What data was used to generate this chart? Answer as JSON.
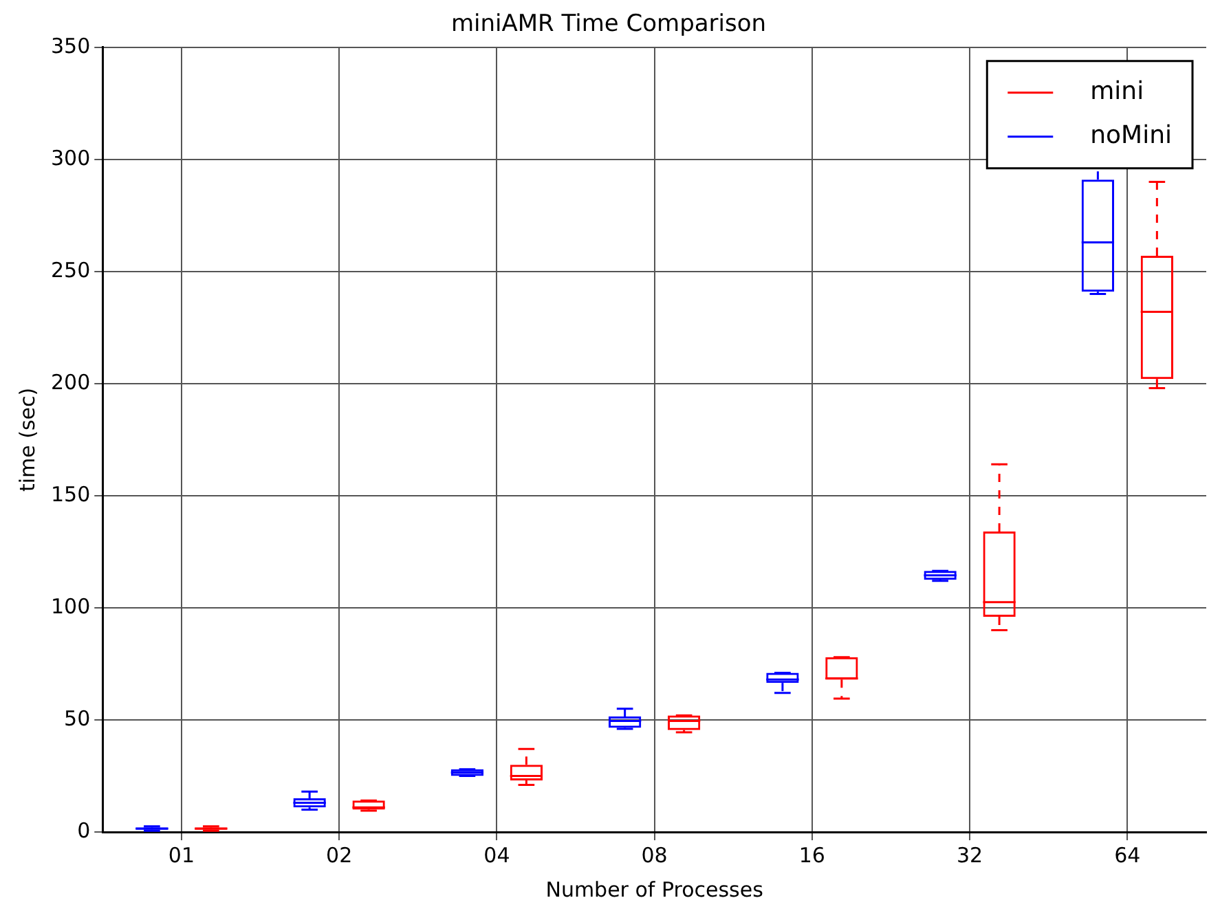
{
  "chart_data": {
    "type": "box",
    "title": "miniAMR Time Comparison",
    "xlabel": "Number of Processes",
    "ylabel": "time (sec)",
    "categories": [
      "01",
      "02",
      "04",
      "08",
      "16",
      "32",
      "64"
    ],
    "ylim": [
      0,
      350
    ],
    "yticks": [
      0,
      50,
      100,
      150,
      200,
      250,
      300,
      350
    ],
    "grid": true,
    "legend": "top right",
    "series": [
      {
        "name": "noMini",
        "color": "#0000ff",
        "boxes": [
          {
            "low": 0.5,
            "q1": 1,
            "median": 1.5,
            "q3": 2,
            "high": 2.5
          },
          {
            "low": 10,
            "q1": 11,
            "median": 13,
            "q3": 15,
            "high": 18
          },
          {
            "low": 25,
            "q1": 25,
            "median": 26.5,
            "q3": 28,
            "high": 28
          },
          {
            "low": 46,
            "q1": 46.5,
            "median": 49.5,
            "q3": 51.5,
            "high": 55
          },
          {
            "low": 62,
            "q1": 66.5,
            "median": 68,
            "q3": 71,
            "high": 71
          },
          {
            "low": 112,
            "q1": 112.5,
            "median": 114.5,
            "q3": 116.5,
            "high": 116.5
          },
          {
            "low": 240,
            "q1": 241,
            "median": 263,
            "q3": 291,
            "high": 298
          }
        ]
      },
      {
        "name": "mini",
        "color": "#ff0000",
        "boxes": [
          {
            "low": 0.5,
            "q1": 1,
            "median": 1.5,
            "q3": 2,
            "high": 2.5
          },
          {
            "low": 9.5,
            "q1": 10,
            "median": 11,
            "q3": 14,
            "high": 14
          },
          {
            "low": 21,
            "q1": 23,
            "median": 25,
            "q3": 30,
            "high": 37
          },
          {
            "low": 44.5,
            "q1": 45.5,
            "median": 49.5,
            "q3": 52,
            "high": 52
          },
          {
            "low": 59.5,
            "q1": 68,
            "median": 68.5,
            "q3": 78,
            "high": 78
          },
          {
            "low": 90,
            "q1": 96,
            "median": 102.5,
            "q3": 134,
            "high": 164
          },
          {
            "low": 198,
            "q1": 202,
            "median": 232,
            "q3": 257,
            "high": 290
          }
        ]
      }
    ]
  }
}
